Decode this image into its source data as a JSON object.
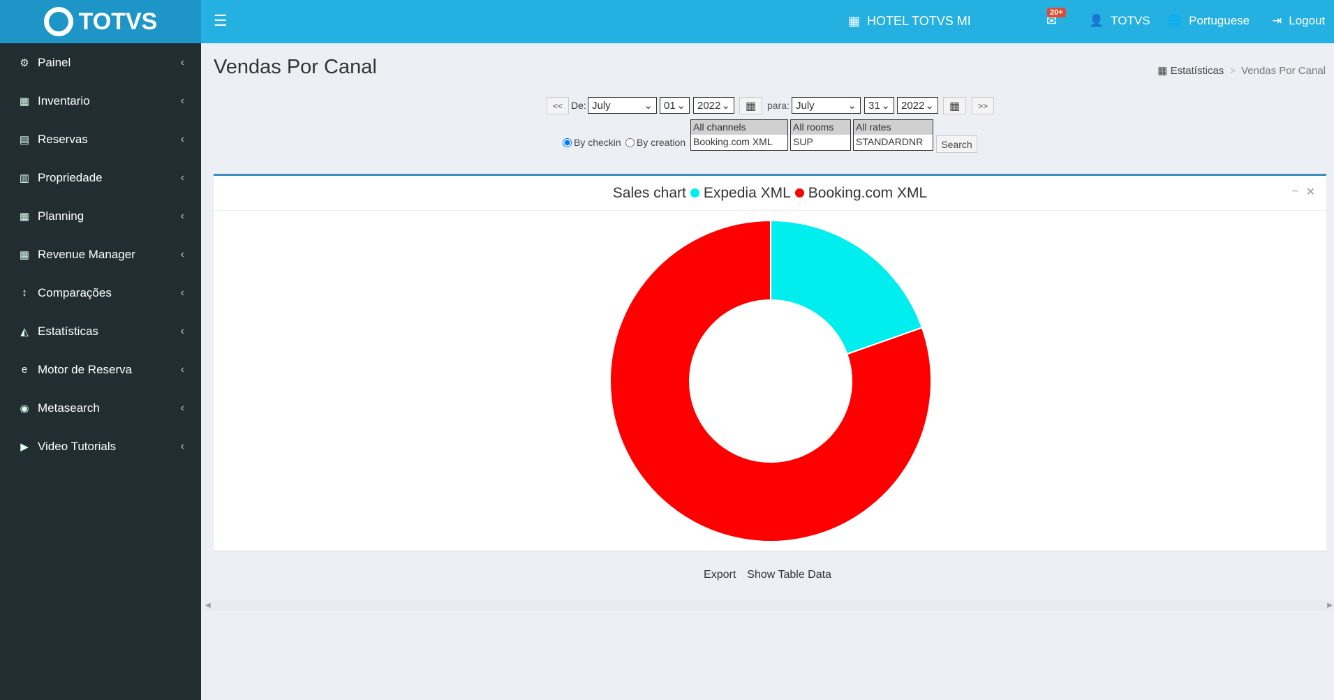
{
  "brand": "TOTVS",
  "sidebar": {
    "items": [
      {
        "label": "Painel",
        "icon": "gear-icon"
      },
      {
        "label": "Inventario",
        "icon": "calendar-icon"
      },
      {
        "label": "Reservas",
        "icon": "book-icon"
      },
      {
        "label": "Propriedade",
        "icon": "building-icon"
      },
      {
        "label": "Planning",
        "icon": "calendar-icon"
      },
      {
        "label": "Revenue Manager",
        "icon": "calculator-icon"
      },
      {
        "label": "Comparações",
        "icon": "sort-icon"
      },
      {
        "label": "Estatísticas",
        "icon": "area-chart-icon"
      },
      {
        "label": "Motor de Reserva",
        "icon": "ie-icon"
      },
      {
        "label": "Metasearch",
        "icon": "chrome-icon"
      },
      {
        "label": "Video Tutorials",
        "icon": "youtube-icon"
      }
    ]
  },
  "header": {
    "hotel": "HOTEL TOTVS MI",
    "badge": "20+",
    "user": "TOTVS",
    "language": "Portuguese",
    "logout": "Logout"
  },
  "page": {
    "title": "Vendas Por Canal",
    "breadcrumb": [
      "Estatísticas",
      "Vendas Por Canal"
    ]
  },
  "filters": {
    "prev": "<<",
    "next": ">>",
    "from_label": "De:",
    "to_label": "para:",
    "from": {
      "month": "July",
      "day": "01",
      "year": "2022"
    },
    "to": {
      "month": "July",
      "day": "31",
      "year": "2022"
    },
    "by_checkin": "By checkin",
    "by_creation": "By creation",
    "mode": "checkin",
    "channels": [
      "All channels",
      "Booking.com XML"
    ],
    "rooms": [
      "All rooms",
      "SUP"
    ],
    "rates": [
      "All rates",
      "STANDARDNR"
    ],
    "search": "Search"
  },
  "chart_data": {
    "type": "pie",
    "title": "Sales chart",
    "donut": true,
    "series": [
      {
        "name": "Expedia XML",
        "value": 19.6,
        "color": "#00eeee"
      },
      {
        "name": "Booking.com XML",
        "value": 80.4,
        "color": "#ff0000"
      }
    ]
  },
  "footer_links": {
    "export": "Export",
    "show_table": "Show Table Data"
  }
}
